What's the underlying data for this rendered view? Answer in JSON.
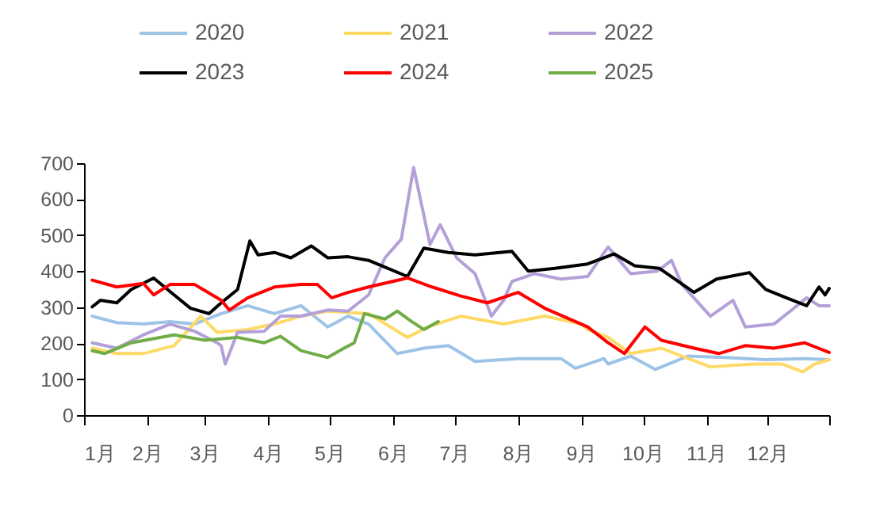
{
  "chart_data": {
    "type": "line",
    "xlim": [
      "--01-01",
      "--12-31"
    ],
    "xticks": [
      {
        "value": "--01-01",
        "label": "1月"
      },
      {
        "value": "--02-01",
        "label": "2月"
      },
      {
        "value": "--03-01",
        "label": "3月"
      },
      {
        "value": "--04-01",
        "label": "4月"
      },
      {
        "value": "--05-01",
        "label": "5月"
      },
      {
        "value": "--06-01",
        "label": "6月"
      },
      {
        "value": "--07-01",
        "label": "7月"
      },
      {
        "value": "--08-01",
        "label": "8月"
      },
      {
        "value": "--09-01",
        "label": "9月"
      },
      {
        "value": "--10-01",
        "label": "10月"
      },
      {
        "value": "--11-01",
        "label": "11月"
      },
      {
        "value": "--12-01",
        "label": "12月"
      },
      {
        "value": "--12-31",
        "label": null
      }
    ],
    "ylim": [
      0,
      700
    ],
    "yticks": [
      0,
      100,
      200,
      300,
      400,
      500,
      600,
      700
    ],
    "grid": false,
    "legend": "top",
    "line_style": "solid",
    "marker": "none",
    "series": [
      {
        "name": "2020",
        "color": "#9dc3e6",
        "x": [
          "--01-05",
          "--01-17",
          "--01-30",
          "--02-12",
          "--02-24",
          "--03-09",
          "--03-22",
          "--04-04",
          "--04-17",
          "--04-30",
          "--05-10",
          "--05-20",
          "--06-03",
          "--06-16",
          "--06-28",
          "--07-11",
          "--08-01",
          "--08-22",
          "--08-29",
          "--09-12",
          "--09-14",
          "--09-25",
          "--10-07",
          "--10-23",
          "--11-10",
          "--11-30",
          "--12-19",
          "--12-31"
        ],
        "values": [
          275,
          257,
          253,
          260,
          253,
          282,
          304,
          282,
          304,
          245,
          275,
          253,
          171,
          186,
          193,
          149,
          157,
          157,
          130,
          157,
          142,
          164,
          127,
          164,
          160,
          154,
          157,
          154
        ]
      },
      {
        "name": "2021",
        "color": "#ffd966",
        "x": [
          "--01-05",
          "--01-17",
          "--01-30",
          "--02-14",
          "--02-27",
          "--03-07",
          "--03-22",
          "--04-04",
          "--04-17",
          "--04-30",
          "--05-20",
          "--06-08",
          "--06-18",
          "--07-04",
          "--07-25",
          "--08-14",
          "--09-01",
          "--09-04",
          "--09-14",
          "--09-25",
          "--10-10",
          "--10-20",
          "--11-03",
          "--11-24",
          "--12-08",
          "--12-18",
          "--12-24",
          "--12-31"
        ],
        "values": [
          186,
          171,
          171,
          193,
          275,
          230,
          238,
          253,
          275,
          289,
          282,
          216,
          245,
          275,
          253,
          275,
          253,
          238,
          216,
          171,
          186,
          164,
          134,
          142,
          142,
          120,
          142,
          154
        ]
      },
      {
        "name": "2022",
        "color": "#b4a0d8",
        "x": [
          "--01-05",
          "--01-17",
          "--01-30",
          "--02-12",
          "--02-24",
          "--03-07",
          "--03-09",
          "--03-11",
          "--03-17",
          "--03-30",
          "--04-07",
          "--04-17",
          "--04-30",
          "--05-10",
          "--05-20",
          "--05-28",
          "--06-05",
          "--06-11",
          "--06-16",
          "--06-19",
          "--06-24",
          "--07-02",
          "--07-11",
          "--07-19",
          "--07-25",
          "--07-29",
          "--08-09",
          "--08-22",
          "--09-04",
          "--09-14",
          "--09-25",
          "--10-08",
          "--10-15",
          "--10-20",
          "--11-03",
          "--11-14",
          "--11-20",
          "--12-04",
          "--12-12",
          "--12-20",
          "--12-26",
          "--12-31"
        ],
        "values": [
          201,
          186,
          223,
          253,
          233,
          201,
          193,
          142,
          230,
          233,
          275,
          275,
          292,
          289,
          334,
          437,
          489,
          688,
          555,
          474,
          529,
          437,
          393,
          275,
          319,
          371,
          393,
          378,
          385,
          467,
          393,
          400,
          430,
          363,
          275,
          319,
          245,
          253,
          289,
          326,
          304,
          304
        ]
      },
      {
        "name": "2023",
        "color": "#000000",
        "x": [
          "--01-05",
          "--01-09",
          "--01-17",
          "--01-24",
          "--02-04",
          "--02-14",
          "--02-22",
          "--03-03",
          "--03-09",
          "--03-17",
          "--03-23",
          "--03-27",
          "--04-04",
          "--04-12",
          "--04-22",
          "--04-30",
          "--05-10",
          "--05-20",
          "--06-08",
          "--06-16",
          "--06-28",
          "--07-11",
          "--07-29",
          "--08-06",
          "--08-19",
          "--09-04",
          "--09-17",
          "--09-27",
          "--10-09",
          "--10-26",
          "--11-06",
          "--11-22",
          "--11-30",
          "--12-10",
          "--12-20",
          "--12-26",
          "--12-29",
          "--12-31"
        ],
        "values": [
          301,
          319,
          312,
          349,
          381,
          334,
          297,
          282,
          312,
          349,
          484,
          445,
          452,
          437,
          470,
          437,
          440,
          430,
          385,
          464,
          452,
          445,
          455,
          400,
          408,
          420,
          448,
          415,
          408,
          341,
          378,
          396,
          349,
          326,
          304,
          356,
          334,
          352
        ]
      },
      {
        "name": "2024",
        "color": "#ff0000",
        "x": [
          "--01-05",
          "--01-17",
          "--01-30",
          "--02-04",
          "--02-12",
          "--02-24",
          "--03-09",
          "--03-13",
          "--03-22",
          "--04-04",
          "--04-17",
          "--04-25",
          "--05-02",
          "--05-10",
          "--05-20",
          "--06-08",
          "--06-20",
          "--07-04",
          "--07-17",
          "--08-01",
          "--08-14",
          "--08-29",
          "--09-04",
          "--09-14",
          "--09-22",
          "--10-02",
          "--10-10",
          "--10-26",
          "--11-07",
          "--11-20",
          "--12-04",
          "--12-19",
          "--12-31"
        ],
        "values": [
          375,
          356,
          366,
          334,
          363,
          363,
          319,
          292,
          326,
          356,
          363,
          363,
          326,
          341,
          356,
          381,
          356,
          331,
          312,
          341,
          297,
          260,
          245,
          201,
          171,
          245,
          208,
          186,
          171,
          193,
          186,
          201,
          174
        ]
      },
      {
        "name": "2025",
        "color": "#70ad47",
        "x": [
          "--01-05",
          "--01-11",
          "--01-24",
          "--02-14",
          "--03-01",
          "--03-17",
          "--03-30",
          "--04-07",
          "--04-17",
          "--04-30",
          "--05-08",
          "--05-13",
          "--05-18",
          "--05-28",
          "--06-03",
          "--06-10",
          "--06-16",
          "--06-23"
        ],
        "values": [
          179,
          171,
          201,
          223,
          208,
          216,
          201,
          219,
          179,
          160,
          186,
          201,
          282,
          267,
          289,
          260,
          238,
          260
        ]
      }
    ]
  }
}
